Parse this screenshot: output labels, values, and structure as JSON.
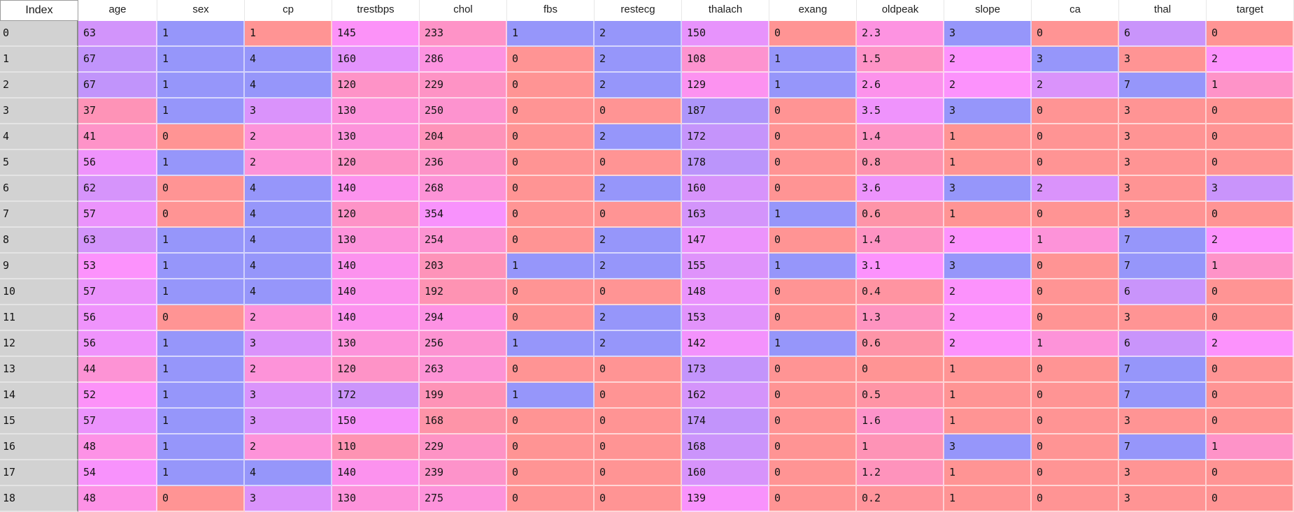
{
  "app": {
    "view": "dataframe-heatmap-grid"
  },
  "theme": {
    "index_header_label_color": "#1a1a1a",
    "header_text_color": "#1e1e1e",
    "cell_text_color": "#141414",
    "index_column_bg": "#d2d2d2",
    "index_column_divider": "#8c8c8c",
    "index_row_separator": "#e4e4e4",
    "header_border": "#9b9b9b",
    "header_separator": "#e7e7e7"
  },
  "heatmap": {
    "low_color": "#ff9494",
    "mid_color": "#fc92fc",
    "high_color": "#9696fa",
    "ranges": {
      "age": [
        29,
        77
      ],
      "sex": [
        0,
        1
      ],
      "cp": [
        1,
        4
      ],
      "trestbps": [
        94,
        200
      ],
      "chol": [
        126,
        564
      ],
      "fbs": [
        0,
        1
      ],
      "restecg": [
        0,
        2
      ],
      "thalach": [
        71,
        202
      ],
      "exang": [
        0,
        1
      ],
      "oldpeak": [
        0,
        6.2
      ],
      "slope": [
        1,
        3
      ],
      "ca": [
        0,
        3
      ],
      "thal": [
        3,
        7
      ],
      "target": [
        0,
        4
      ]
    }
  },
  "table": {
    "index_header": "Index",
    "columns": [
      "age",
      "sex",
      "cp",
      "trestbps",
      "chol",
      "fbs",
      "restecg",
      "thalach",
      "exang",
      "oldpeak",
      "slope",
      "ca",
      "thal",
      "target"
    ],
    "rows": [
      {
        "index": "0",
        "cells": [
          "63",
          "1",
          "1",
          "145",
          "233",
          "1",
          "2",
          "150",
          "0",
          "2.3",
          "3",
          "0",
          "6",
          "0"
        ]
      },
      {
        "index": "1",
        "cells": [
          "67",
          "1",
          "4",
          "160",
          "286",
          "0",
          "2",
          "108",
          "1",
          "1.5",
          "2",
          "3",
          "3",
          "2"
        ]
      },
      {
        "index": "2",
        "cells": [
          "67",
          "1",
          "4",
          "120",
          "229",
          "0",
          "2",
          "129",
          "1",
          "2.6",
          "2",
          "2",
          "7",
          "1"
        ]
      },
      {
        "index": "3",
        "cells": [
          "37",
          "1",
          "3",
          "130",
          "250",
          "0",
          "0",
          "187",
          "0",
          "3.5",
          "3",
          "0",
          "3",
          "0"
        ]
      },
      {
        "index": "4",
        "cells": [
          "41",
          "0",
          "2",
          "130",
          "204",
          "0",
          "2",
          "172",
          "0",
          "1.4",
          "1",
          "0",
          "3",
          "0"
        ]
      },
      {
        "index": "5",
        "cells": [
          "56",
          "1",
          "2",
          "120",
          "236",
          "0",
          "0",
          "178",
          "0",
          "0.8",
          "1",
          "0",
          "3",
          "0"
        ]
      },
      {
        "index": "6",
        "cells": [
          "62",
          "0",
          "4",
          "140",
          "268",
          "0",
          "2",
          "160",
          "0",
          "3.6",
          "3",
          "2",
          "3",
          "3"
        ]
      },
      {
        "index": "7",
        "cells": [
          "57",
          "0",
          "4",
          "120",
          "354",
          "0",
          "0",
          "163",
          "1",
          "0.6",
          "1",
          "0",
          "3",
          "0"
        ]
      },
      {
        "index": "8",
        "cells": [
          "63",
          "1",
          "4",
          "130",
          "254",
          "0",
          "2",
          "147",
          "0",
          "1.4",
          "2",
          "1",
          "7",
          "2"
        ]
      },
      {
        "index": "9",
        "cells": [
          "53",
          "1",
          "4",
          "140",
          "203",
          "1",
          "2",
          "155",
          "1",
          "3.1",
          "3",
          "0",
          "7",
          "1"
        ]
      },
      {
        "index": "10",
        "cells": [
          "57",
          "1",
          "4",
          "140",
          "192",
          "0",
          "0",
          "148",
          "0",
          "0.4",
          "2",
          "0",
          "6",
          "0"
        ]
      },
      {
        "index": "11",
        "cells": [
          "56",
          "0",
          "2",
          "140",
          "294",
          "0",
          "2",
          "153",
          "0",
          "1.3",
          "2",
          "0",
          "3",
          "0"
        ]
      },
      {
        "index": "12",
        "cells": [
          "56",
          "1",
          "3",
          "130",
          "256",
          "1",
          "2",
          "142",
          "1",
          "0.6",
          "2",
          "1",
          "6",
          "2"
        ]
      },
      {
        "index": "13",
        "cells": [
          "44",
          "1",
          "2",
          "120",
          "263",
          "0",
          "0",
          "173",
          "0",
          "0",
          "1",
          "0",
          "7",
          "0"
        ]
      },
      {
        "index": "14",
        "cells": [
          "52",
          "1",
          "3",
          "172",
          "199",
          "1",
          "0",
          "162",
          "0",
          "0.5",
          "1",
          "0",
          "7",
          "0"
        ]
      },
      {
        "index": "15",
        "cells": [
          "57",
          "1",
          "3",
          "150",
          "168",
          "0",
          "0",
          "174",
          "0",
          "1.6",
          "1",
          "0",
          "3",
          "0"
        ]
      },
      {
        "index": "16",
        "cells": [
          "48",
          "1",
          "2",
          "110",
          "229",
          "0",
          "0",
          "168",
          "0",
          "1",
          "3",
          "0",
          "7",
          "1"
        ]
      },
      {
        "index": "17",
        "cells": [
          "54",
          "1",
          "4",
          "140",
          "239",
          "0",
          "0",
          "160",
          "0",
          "1.2",
          "1",
          "0",
          "3",
          "0"
        ]
      },
      {
        "index": "18",
        "cells": [
          "48",
          "0",
          "3",
          "130",
          "275",
          "0",
          "0",
          "139",
          "0",
          "0.2",
          "1",
          "0",
          "3",
          "0"
        ]
      }
    ]
  }
}
